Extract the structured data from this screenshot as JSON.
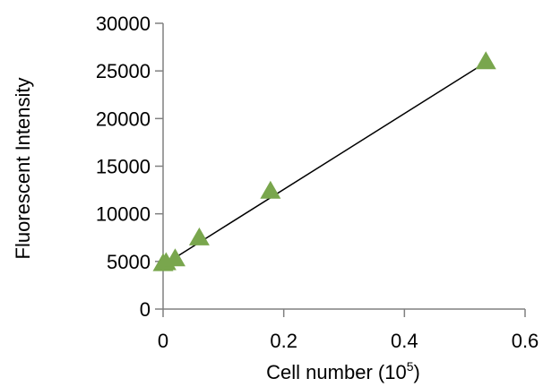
{
  "chart_data": {
    "type": "scatter",
    "xlabel": "Cell number  (10",
    "xlabel_superscript": "5",
    "xlabel_suffix": ")",
    "ylabel": "Fluorescent Intensity",
    "xlim": [
      0,
      0.6
    ],
    "ylim": [
      0,
      30000
    ],
    "x_ticks": [
      "0",
      "0.2",
      "0.4",
      "0.6"
    ],
    "y_ticks": [
      "0",
      "5000",
      "10000",
      "15000",
      "20000",
      "25000",
      "30000"
    ],
    "grid": false,
    "legend": "none",
    "marker": "triangle",
    "marker_color": "#79a64d",
    "trendline_color": "#000000",
    "series": [
      {
        "x": [
          0,
          0.005,
          0.02,
          0.06,
          0.178,
          0.535
        ],
        "y": [
          4700,
          4800,
          5200,
          7400,
          12300,
          25900
        ]
      }
    ],
    "trendline": {
      "x": [
        0,
        0.535
      ],
      "y": [
        4600,
        25900
      ]
    }
  }
}
